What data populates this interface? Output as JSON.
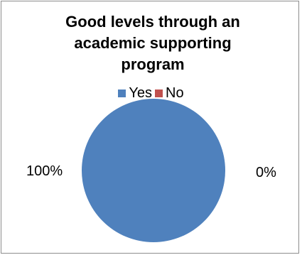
{
  "chart_data": {
    "type": "pie",
    "title": "Good levels through an academic supporting program",
    "title_lines": [
      "Good levels through an",
      "academic supporting",
      "program"
    ],
    "categories": [
      "Yes",
      "No"
    ],
    "values": [
      100,
      0
    ],
    "data_labels": [
      "100%",
      "0%"
    ],
    "colors": [
      "#4f81bd",
      "#c0504d"
    ],
    "legend_position": "top",
    "legend": [
      {
        "label": "Yes",
        "color": "#4f81bd"
      },
      {
        "label": "No",
        "color": "#c0504d"
      }
    ]
  }
}
